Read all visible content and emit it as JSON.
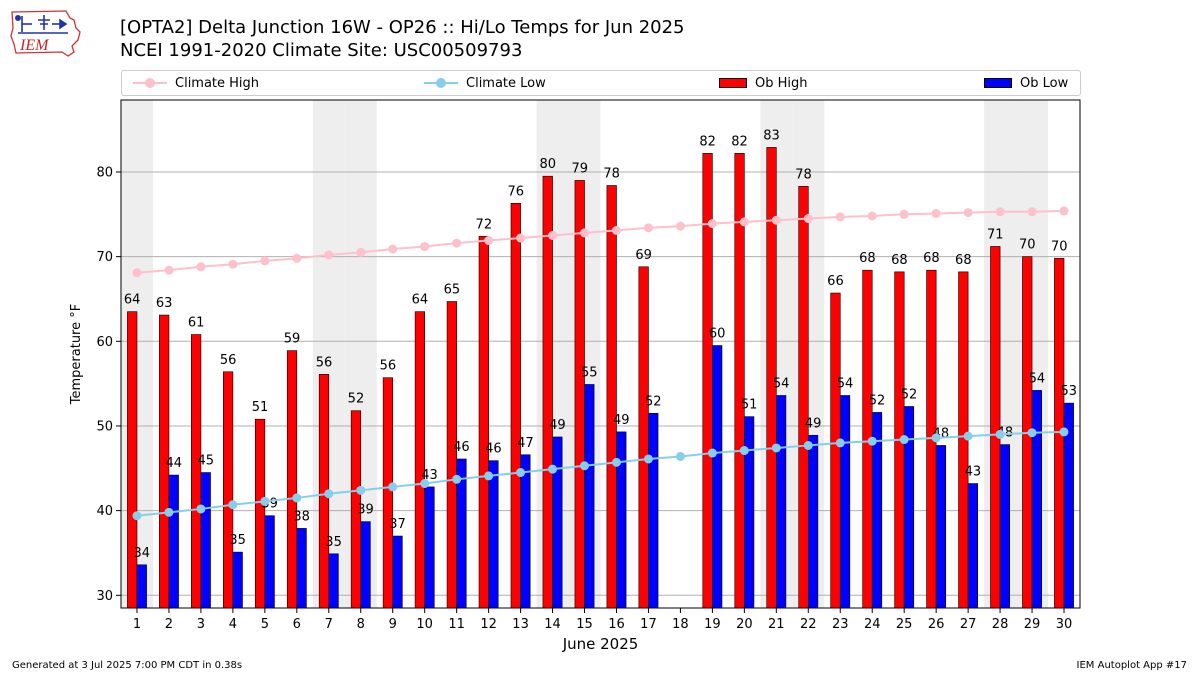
{
  "header": {
    "logo_text": "IEM",
    "title_line1": "[OPTA2] Delta Junction 16W - OP26 :: Hi/Lo Temps for Jun 2025",
    "title_line2": "NCEI 1991-2020 Climate Site: USC00509793"
  },
  "legend": {
    "climate_high": "Climate High",
    "climate_low": "Climate Low",
    "ob_high": "Ob High",
    "ob_low": "Ob Low"
  },
  "colors": {
    "ob_high": "#ff0000",
    "ob_low": "#0000ff",
    "climate_high": "#ffc0cb",
    "climate_low": "#87ceeb",
    "weekend_band": "#eeeeee",
    "grid": "#b0b0b0"
  },
  "footer": {
    "left": "Generated at 3 Jul 2025 7:00 PM CDT in 0.38s",
    "right": "IEM Autoplot App #17"
  },
  "chart_data": {
    "type": "bar",
    "xlabel": "June 2025",
    "ylabel": "Temperature °F",
    "ylim": [
      28.5,
      88.5
    ],
    "yticks": [
      30,
      40,
      50,
      60,
      70,
      80
    ],
    "grid": true,
    "legend_position": "top",
    "categories": [
      "1",
      "2",
      "3",
      "4",
      "5",
      "6",
      "7",
      "8",
      "9",
      "10",
      "11",
      "12",
      "13",
      "14",
      "15",
      "16",
      "17",
      "18",
      "19",
      "20",
      "21",
      "22",
      "23",
      "24",
      "25",
      "26",
      "27",
      "28",
      "29",
      "30"
    ],
    "shaded_days": [
      1,
      7,
      8,
      14,
      15,
      21,
      22,
      28,
      29
    ],
    "series": [
      {
        "name": "Ob High",
        "kind": "bar",
        "values": [
          64,
          63,
          61,
          56,
          51,
          59,
          56,
          52,
          56,
          64,
          65,
          72,
          76,
          80,
          79,
          78,
          69,
          null,
          82,
          82,
          83,
          78,
          66,
          68,
          68,
          68,
          68,
          71,
          70,
          70
        ],
        "plotted": [
          63.5,
          63.1,
          60.8,
          56.4,
          50.8,
          58.9,
          56.1,
          51.8,
          55.7,
          63.5,
          64.7,
          72.4,
          76.3,
          79.5,
          79.0,
          78.4,
          68.8,
          null,
          82.2,
          82.2,
          82.9,
          78.3,
          65.7,
          68.4,
          68.2,
          68.4,
          68.2,
          71.2,
          70.0,
          69.8
        ]
      },
      {
        "name": "Ob Low",
        "kind": "bar",
        "values": [
          34,
          44,
          45,
          35,
          39,
          38,
          35,
          39,
          37,
          43,
          46,
          46,
          47,
          49,
          55,
          49,
          52,
          null,
          60,
          51,
          54,
          49,
          54,
          52,
          52,
          48,
          43,
          48,
          54,
          53
        ],
        "plotted": [
          33.6,
          44.2,
          44.5,
          35.1,
          39.4,
          37.9,
          34.9,
          38.7,
          37.0,
          42.8,
          46.1,
          45.9,
          46.6,
          48.7,
          54.9,
          49.3,
          51.5,
          null,
          59.5,
          51.1,
          53.6,
          48.9,
          53.6,
          51.6,
          52.3,
          47.7,
          43.2,
          47.8,
          54.2,
          52.7
        ]
      },
      {
        "name": "Climate High",
        "kind": "line",
        "values": [
          68.1,
          68.4,
          68.8,
          69.1,
          69.5,
          69.8,
          70.2,
          70.5,
          70.9,
          71.2,
          71.6,
          71.9,
          72.2,
          72.5,
          72.8,
          73.1,
          73.4,
          73.6,
          73.9,
          74.1,
          74.3,
          74.5,
          74.7,
          74.8,
          75.0,
          75.1,
          75.2,
          75.3,
          75.3,
          75.4
        ]
      },
      {
        "name": "Climate Low",
        "kind": "line",
        "values": [
          39.4,
          39.8,
          40.2,
          40.7,
          41.1,
          41.5,
          42.0,
          42.4,
          42.8,
          43.2,
          43.7,
          44.1,
          44.5,
          44.9,
          45.3,
          45.7,
          46.1,
          46.4,
          46.8,
          47.1,
          47.4,
          47.7,
          48.0,
          48.2,
          48.4,
          48.6,
          48.8,
          49.0,
          49.2,
          49.3
        ]
      }
    ]
  }
}
